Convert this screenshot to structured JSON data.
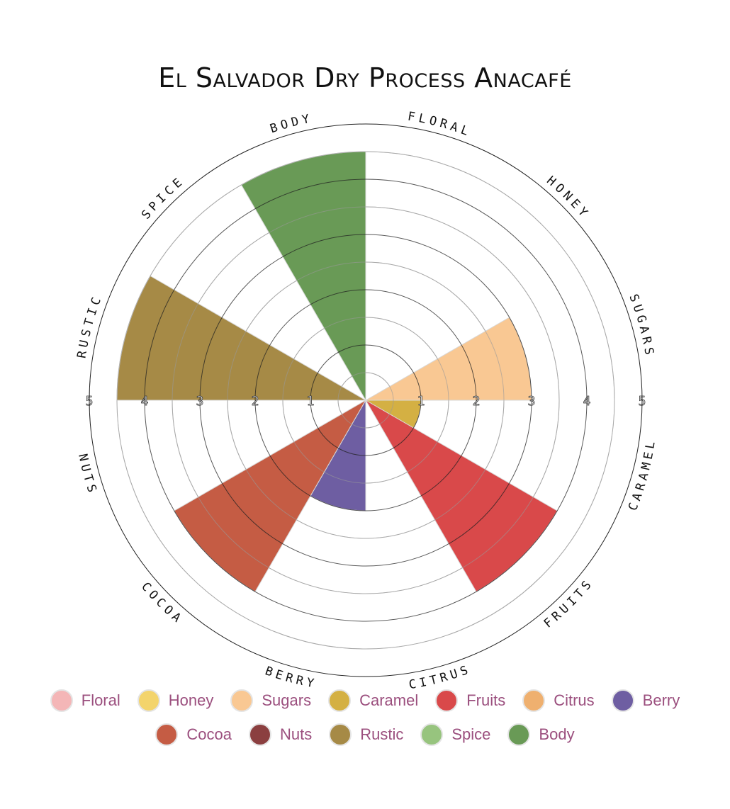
{
  "chart_data": {
    "type": "polar-area",
    "title": "El Salvador Dry Process Anacafé",
    "categories": [
      "Floral",
      "Honey",
      "Sugars",
      "Caramel",
      "Fruits",
      "Citrus",
      "Berry",
      "Cocoa",
      "Nuts",
      "Rustic",
      "Spice",
      "Body"
    ],
    "axis_labels": [
      "FLORAL",
      "HONEY",
      "SUGARS",
      "CARAMEL",
      "FRUITS",
      "CITRUS",
      "BERRY",
      "COCOA",
      "NUTS",
      "RUSTIC",
      "SPICE",
      "BODY"
    ],
    "values": [
      0,
      0,
      3,
      1,
      4,
      0,
      2,
      4,
      0,
      4.5,
      0,
      4.5
    ],
    "colors": [
      "#f4b6b7",
      "#f3d46c",
      "#f9c893",
      "#d4b043",
      "#d9494a",
      "#efb06f",
      "#6e5ea2",
      "#c55c44",
      "#8b3f40",
      "#a68a46",
      "#97c47e",
      "#699a56"
    ],
    "rmax": 5,
    "ticks": [
      "1",
      "2",
      "3",
      "4",
      "5"
    ],
    "tick_values": [
      1,
      2,
      3,
      4,
      5
    ],
    "grid": true,
    "legend_position": "bottom"
  }
}
